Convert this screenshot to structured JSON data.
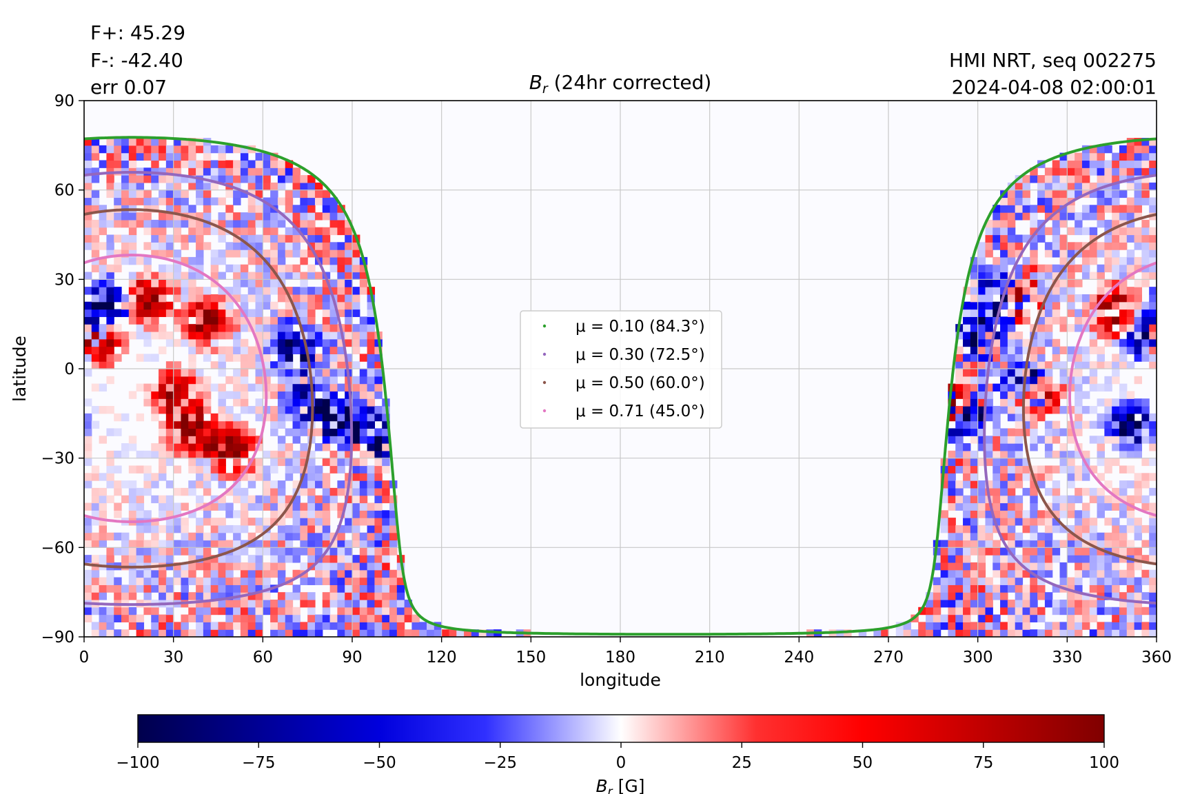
{
  "stats": {
    "fplus": "F+: 45.29",
    "fminus": "F-: -42.40",
    "err": "err 0.07"
  },
  "instrument": {
    "line1": "HMI NRT, seq 002275",
    "line2": "2024-04-08 02:00:01"
  },
  "chart_data": {
    "type": "heatmap",
    "title_var": "B",
    "title_sub": "r",
    "title_rest": " (24hr corrected)",
    "xlabel": "longitude",
    "ylabel": "latitude",
    "xlim": [
      0,
      360
    ],
    "ylim": [
      -90,
      90
    ],
    "xticks": [
      0,
      30,
      60,
      90,
      120,
      150,
      180,
      210,
      240,
      270,
      300,
      330,
      360
    ],
    "yticks": [
      -90,
      -60,
      -30,
      0,
      30,
      60,
      90
    ],
    "grid": true,
    "legend_position": "center",
    "colors": {
      "negative": "#00004c",
      "zero": "#ffffff",
      "positive": "#800000",
      "grid": "#c8c8c8"
    },
    "series": [
      {
        "name": "μ = 0.10 (84.3°)",
        "mu": 0.1,
        "angle_deg": 84.3,
        "color": "#2ca02c"
      },
      {
        "name": "μ = 0.30 (72.5°)",
        "mu": 0.3,
        "angle_deg": 72.5,
        "color": "#9467bd"
      },
      {
        "name": "μ = 0.50 (60.0°)",
        "mu": 0.5,
        "angle_deg": 60.0,
        "color": "#8c564b"
      },
      {
        "name": "μ = 0.71 (45.0°)",
        "mu": 0.71,
        "angle_deg": 45.0,
        "color": "#e377c2"
      }
    ],
    "disk_center": {
      "lon": 16,
      "lat": -6.6
    },
    "colorbar": {
      "label_var": "B",
      "label_sub": "r",
      "label_unit": " [G]",
      "ticks": [
        -100,
        -75,
        -50,
        -25,
        0,
        25,
        50,
        75,
        100
      ],
      "range": [
        -100,
        100
      ]
    }
  }
}
